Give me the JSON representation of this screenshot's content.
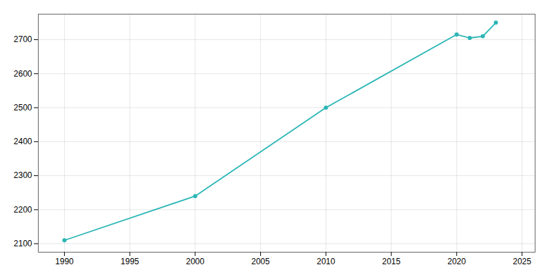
{
  "chart_data": {
    "type": "line",
    "x": [
      1990,
      2000,
      2010,
      2020,
      2021,
      2022,
      2023
    ],
    "values": [
      2110,
      2240,
      2500,
      2715,
      2705,
      2710,
      2750
    ],
    "color": "#2ab5b5",
    "marker": "circle",
    "xlim": [
      1988,
      2026
    ],
    "ylim": [
      2075,
      2775
    ],
    "xticks": [
      1990,
      1995,
      2000,
      2005,
      2010,
      2015,
      2020,
      2025
    ],
    "yticks": [
      2100,
      2200,
      2300,
      2400,
      2500,
      2600,
      2700
    ],
    "grid": true
  }
}
